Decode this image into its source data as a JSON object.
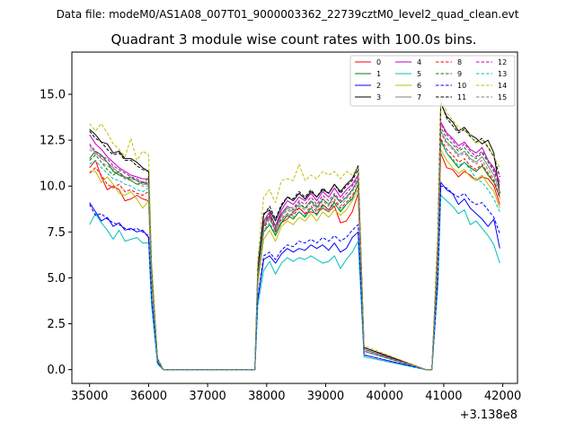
{
  "suptitle": "Data file: modeM0/AS1A08_007T01_9000003362_22739cztM0_level2_quad_clean.evt",
  "chart_data": {
    "type": "line",
    "title": "Quadrant 3 module wise count rates with 100.0s bins.",
    "xlabel": "",
    "ylabel": "",
    "x_offset_label": "+3.138e8",
    "xlim": [
      34700,
      42250
    ],
    "ylim": [
      -0.75,
      17.3
    ],
    "xticks": [
      35000,
      36000,
      37000,
      38000,
      39000,
      40000,
      41000,
      42000
    ],
    "xtick_labels": [
      "35000",
      "36000",
      "37000",
      "38000",
      "39000",
      "40000",
      "41000",
      "42000"
    ],
    "yticks": [
      0.0,
      2.5,
      5.0,
      7.5,
      10.0,
      12.5,
      15.0
    ],
    "ytick_labels": [
      "0.0",
      "2.5",
      "5.0",
      "7.5",
      "10.0",
      "12.5",
      "15.0"
    ],
    "legend_position": "top-right",
    "x": [
      35000,
      35100,
      35200,
      35300,
      35400,
      35500,
      35600,
      35700,
      35800,
      35900,
      36000,
      36050,
      36150,
      36250,
      37800,
      37850,
      37950,
      38050,
      38150,
      38250,
      38350,
      38450,
      38550,
      38650,
      38750,
      38850,
      38950,
      39050,
      39150,
      39250,
      39350,
      39450,
      39550,
      39650,
      40700,
      40800,
      40900,
      40950,
      41050,
      41150,
      41250,
      41350,
      41450,
      41550,
      41650,
      41750,
      41850,
      41950
    ],
    "series": [
      {
        "name": "0",
        "color": "#ff0000",
        "dash": false,
        "values": [
          11.0,
          11.4,
          10.5,
          9.8,
          10.0,
          9.8,
          9.2,
          9.3,
          9.5,
          9.3,
          9.2,
          4.8,
          0.5,
          0.0,
          0.0,
          4.8,
          7.8,
          8.4,
          7.5,
          8.0,
          8.2,
          8.6,
          8.8,
          8.5,
          8.6,
          8.5,
          8.8,
          8.6,
          8.9,
          8.0,
          8.1,
          8.6,
          9.6,
          1.0,
          0.0,
          0.0,
          5.5,
          11.8,
          11.0,
          10.9,
          10.5,
          10.8,
          10.6,
          10.3,
          10.5,
          10.4,
          10.0,
          9.0
        ]
      },
      {
        "name": "1",
        "color": "#008000",
        "dash": false,
        "values": [
          11.5,
          11.9,
          11.7,
          11.3,
          10.8,
          10.6,
          10.5,
          10.3,
          10.1,
          10.2,
          10.1,
          5.2,
          0.5,
          0.0,
          0.0,
          5.0,
          7.5,
          7.9,
          7.3,
          8.0,
          8.4,
          8.2,
          8.6,
          8.3,
          8.8,
          8.4,
          9.0,
          8.7,
          9.1,
          8.6,
          9.0,
          9.3,
          10.1,
          1.0,
          0.0,
          0.0,
          6.0,
          12.5,
          11.8,
          11.4,
          11.0,
          11.3,
          11.0,
          10.8,
          11.1,
          10.6,
          10.2,
          9.4
        ]
      },
      {
        "name": "2",
        "color": "#0000ff",
        "dash": false,
        "values": [
          9.1,
          8.6,
          8.1,
          8.3,
          7.8,
          8.0,
          7.6,
          7.7,
          7.5,
          7.6,
          7.2,
          3.8,
          0.4,
          0.0,
          0.0,
          3.8,
          6.0,
          6.2,
          5.8,
          6.3,
          6.6,
          6.4,
          6.6,
          6.5,
          6.8,
          6.6,
          6.8,
          6.5,
          6.9,
          6.4,
          6.6,
          7.2,
          7.5,
          0.8,
          0.0,
          0.0,
          4.8,
          10.2,
          9.8,
          9.6,
          9.0,
          9.3,
          8.8,
          8.5,
          8.2,
          7.8,
          8.2,
          6.6
        ]
      },
      {
        "name": "3",
        "color": "#000000",
        "dash": false,
        "values": [
          13.1,
          12.8,
          12.4,
          12.3,
          11.8,
          11.9,
          11.5,
          11.5,
          11.3,
          11.0,
          10.8,
          5.6,
          0.6,
          0.0,
          0.0,
          5.5,
          8.5,
          8.7,
          8.1,
          8.9,
          9.4,
          9.2,
          9.6,
          9.3,
          9.7,
          9.4,
          9.8,
          9.6,
          10.1,
          9.7,
          10.1,
          10.4,
          11.1,
          1.2,
          0.0,
          0.0,
          7.0,
          14.5,
          13.8,
          13.5,
          13.0,
          13.2,
          12.8,
          12.6,
          12.3,
          12.5,
          11.8,
          9.6
        ]
      },
      {
        "name": "4",
        "color": "#c000c0",
        "dash": false,
        "values": [
          12.8,
          12.3,
          12.0,
          11.6,
          11.3,
          11.0,
          10.8,
          10.6,
          10.5,
          10.4,
          10.4,
          5.3,
          0.5,
          0.0,
          0.0,
          5.1,
          8.1,
          8.6,
          7.8,
          8.7,
          9.2,
          9.0,
          9.4,
          9.2,
          9.6,
          9.2,
          9.7,
          9.4,
          9.9,
          9.4,
          9.8,
          10.1,
          10.6,
          1.1,
          0.0,
          0.0,
          6.6,
          13.5,
          12.9,
          12.6,
          12.2,
          12.4,
          12.0,
          11.8,
          12.1,
          11.4,
          11.0,
          10.2
        ]
      },
      {
        "name": "5",
        "color": "#00bfbf",
        "dash": false,
        "values": [
          7.9,
          8.5,
          8.0,
          7.6,
          7.1,
          7.6,
          7.0,
          7.1,
          7.2,
          6.9,
          6.9,
          3.5,
          0.3,
          0.0,
          0.0,
          3.5,
          5.4,
          5.9,
          5.2,
          5.8,
          6.1,
          5.9,
          6.1,
          6.0,
          6.2,
          6.0,
          5.8,
          5.9,
          6.2,
          5.5,
          6.0,
          6.4,
          7.0,
          0.7,
          0.0,
          0.0,
          4.5,
          9.5,
          9.2,
          8.9,
          8.5,
          8.7,
          7.9,
          8.1,
          7.7,
          7.3,
          6.8,
          5.8
        ]
      },
      {
        "name": "6",
        "color": "#bfbf00",
        "dash": false,
        "values": [
          10.8,
          10.8,
          10.2,
          10.5,
          10.1,
          9.6,
          9.5,
          9.7,
          9.3,
          8.8,
          9.2,
          4.7,
          0.5,
          0.0,
          0.0,
          4.6,
          7.1,
          7.6,
          7.0,
          7.8,
          8.1,
          7.9,
          8.3,
          8.1,
          8.5,
          8.1,
          8.6,
          8.3,
          8.7,
          8.4,
          8.7,
          9.2,
          9.8,
          1.0,
          0.0,
          0.0,
          5.7,
          12.0,
          11.4,
          11.0,
          10.7,
          10.9,
          10.5,
          10.3,
          10.6,
          10.1,
          9.7,
          8.8
        ]
      },
      {
        "name": "7",
        "color": "#808080",
        "dash": false,
        "values": [
          12.2,
          11.8,
          11.5,
          11.3,
          11.0,
          10.7,
          10.5,
          10.4,
          10.3,
          10.1,
          10.1,
          5.1,
          0.5,
          0.0,
          0.0,
          5.0,
          7.9,
          8.3,
          7.6,
          8.4,
          8.8,
          8.6,
          9.0,
          8.8,
          9.2,
          8.8,
          9.3,
          9.0,
          9.5,
          9.1,
          9.4,
          9.8,
          10.4,
          1.1,
          0.0,
          0.0,
          6.3,
          13.0,
          12.4,
          12.1,
          11.7,
          11.9,
          11.5,
          11.3,
          11.6,
          11.1,
          10.6,
          9.7
        ]
      },
      {
        "name": "8",
        "color": "#ff0000",
        "dash": true,
        "values": [
          10.7,
          11.0,
          10.6,
          10.1,
          9.9,
          10.1,
          9.7,
          9.8,
          9.6,
          9.5,
          9.7,
          4.9,
          0.5,
          0.0,
          0.0,
          4.9,
          7.7,
          8.2,
          7.6,
          8.2,
          8.5,
          8.4,
          8.8,
          8.5,
          8.9,
          8.6,
          9.0,
          8.7,
          9.2,
          8.8,
          9.1,
          9.5,
          10.0,
          1.0,
          0.0,
          0.0,
          6.0,
          12.6,
          12.0,
          11.7,
          11.3,
          11.5,
          11.1,
          10.9,
          11.2,
          10.7,
          10.3,
          9.3
        ]
      },
      {
        "name": "9",
        "color": "#008000",
        "dash": true,
        "values": [
          11.4,
          11.7,
          11.3,
          10.9,
          10.6,
          10.8,
          10.4,
          10.5,
          10.3,
          10.2,
          10.4,
          5.3,
          0.5,
          0.0,
          0.0,
          5.2,
          8.0,
          8.5,
          7.8,
          8.5,
          8.9,
          8.7,
          9.1,
          8.8,
          9.2,
          8.9,
          9.3,
          9.0,
          9.5,
          9.1,
          9.4,
          9.8,
          10.3,
          1.1,
          0.0,
          0.0,
          6.4,
          13.2,
          12.6,
          12.3,
          11.9,
          12.1,
          11.7,
          11.5,
          11.8,
          11.3,
          10.8,
          9.9
        ]
      },
      {
        "name": "10",
        "color": "#0000ff",
        "dash": true,
        "values": [
          9.0,
          8.4,
          8.5,
          8.2,
          8.0,
          7.9,
          7.7,
          7.6,
          7.7,
          7.5,
          7.3,
          3.9,
          0.4,
          0.0,
          0.0,
          3.9,
          6.2,
          6.4,
          6.0,
          6.5,
          6.8,
          6.7,
          7.0,
          6.9,
          7.1,
          6.9,
          7.2,
          7.0,
          7.3,
          7.0,
          7.2,
          7.6,
          7.9,
          0.8,
          0.0,
          0.0,
          4.9,
          10.0,
          9.9,
          9.6,
          9.4,
          9.6,
          9.2,
          9.0,
          9.1,
          8.7,
          8.3,
          7.4
        ]
      },
      {
        "name": "11",
        "color": "#000000",
        "dash": true,
        "values": [
          13.0,
          12.6,
          12.4,
          12.0,
          11.7,
          11.8,
          11.4,
          11.4,
          11.1,
          10.9,
          10.8,
          5.6,
          0.6,
          0.0,
          0.0,
          5.4,
          8.4,
          8.9,
          8.2,
          9.0,
          9.4,
          9.3,
          9.7,
          9.4,
          9.8,
          9.4,
          9.9,
          9.6,
          10.1,
          9.6,
          10.0,
          10.3,
          10.9,
          1.2,
          0.0,
          0.0,
          7.0,
          14.6,
          13.7,
          13.3,
          12.9,
          13.1,
          12.7,
          12.4,
          12.6,
          12.1,
          11.6,
          10.5
        ]
      },
      {
        "name": "12",
        "color": "#c000c0",
        "dash": true,
        "values": [
          12.3,
          11.9,
          11.6,
          11.5,
          11.1,
          10.9,
          10.7,
          10.5,
          10.4,
          10.2,
          10.2,
          5.2,
          0.5,
          0.0,
          0.0,
          5.1,
          8.0,
          8.4,
          7.7,
          8.5,
          8.9,
          8.8,
          9.2,
          9.0,
          9.4,
          9.0,
          9.5,
          9.2,
          9.6,
          9.2,
          9.6,
          10.0,
          10.5,
          1.1,
          0.0,
          0.0,
          6.5,
          13.4,
          12.8,
          12.5,
          12.0,
          12.3,
          11.9,
          11.6,
          11.9,
          11.4,
          10.9,
          10.0
        ]
      },
      {
        "name": "13",
        "color": "#00bfbf",
        "dash": true,
        "values": [
          11.2,
          11.4,
          11.0,
          10.7,
          10.4,
          10.3,
          10.1,
          10.0,
          9.8,
          9.7,
          9.9,
          5.0,
          0.5,
          0.0,
          0.0,
          4.9,
          7.6,
          8.0,
          7.4,
          8.1,
          8.5,
          8.3,
          8.6,
          8.4,
          8.8,
          8.4,
          8.9,
          8.6,
          9.0,
          8.7,
          9.0,
          9.4,
          9.9,
          1.0,
          0.0,
          0.0,
          6.1,
          12.4,
          11.8,
          11.5,
          11.1,
          11.3,
          10.9,
          10.4,
          10.2,
          9.8,
          9.3,
          8.6
        ]
      },
      {
        "name": "14",
        "color": "#bfbf00",
        "dash": true,
        "values": [
          13.4,
          13.0,
          13.4,
          12.9,
          12.3,
          12.0,
          11.6,
          12.6,
          11.4,
          11.9,
          11.7,
          6.0,
          0.6,
          0.0,
          0.0,
          6.0,
          9.4,
          9.8,
          9.1,
          10.3,
          10.4,
          10.3,
          11.2,
          10.3,
          10.6,
          10.4,
          10.8,
          10.6,
          10.8,
          10.4,
          10.8,
          10.6,
          11.0,
          1.3,
          0.0,
          0.0,
          7.5,
          15.0,
          14.0,
          13.6,
          13.2,
          13.0,
          12.8,
          12.3,
          12.5,
          12.2,
          11.6,
          11.0
        ]
      },
      {
        "name": "15",
        "color": "#808080",
        "dash": true,
        "values": [
          12.0,
          11.7,
          11.3,
          11.1,
          10.9,
          10.6,
          10.4,
          10.3,
          10.1,
          10.0,
          10.0,
          5.1,
          0.5,
          0.0,
          0.0,
          5.0,
          7.8,
          8.2,
          7.6,
          8.3,
          8.7,
          8.5,
          8.9,
          8.7,
          9.1,
          8.7,
          9.2,
          8.9,
          9.3,
          8.9,
          9.3,
          9.7,
          10.2,
          1.1,
          0.0,
          0.0,
          6.3,
          12.9,
          12.3,
          12.0,
          11.6,
          11.8,
          11.4,
          11.2,
          11.4,
          10.9,
          10.4,
          9.5
        ]
      }
    ]
  }
}
